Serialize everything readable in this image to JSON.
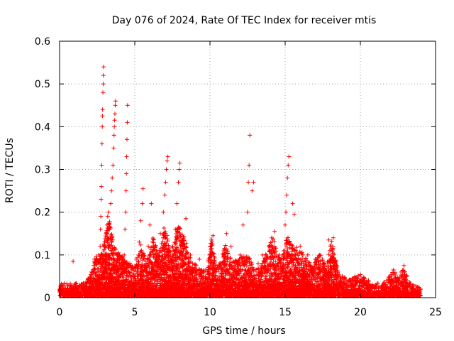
{
  "chart_data": {
    "type": "scatter",
    "title": "Day 076 of 2024, Rate Of TEC Index for receiver mtis",
    "xlabel": "GPS time / hours",
    "ylabel": "ROTI / TECUs",
    "xlim": [
      0,
      25
    ],
    "ylim": [
      0,
      0.6
    ],
    "x_ticks": [
      "0",
      "5",
      "10",
      "15",
      "20",
      "25"
    ],
    "y_ticks": [
      "0",
      "0.1",
      "0.2",
      "0.3",
      "0.4",
      "0.5",
      "0.6"
    ],
    "grid": true,
    "marker": "plus",
    "color": "#ff0000",
    "series": [
      {
        "name": "ROTI",
        "points": [
          [
            0.05,
            0.018
          ],
          [
            0.2,
            0.03
          ],
          [
            0.5,
            0.022
          ],
          [
            0.9,
            0.085
          ],
          [
            1.0,
            0.03
          ],
          [
            1.4,
            0.028
          ],
          [
            1.8,
            0.032
          ],
          [
            2.1,
            0.04
          ],
          [
            2.3,
            0.06
          ],
          [
            2.4,
            0.08
          ],
          [
            2.5,
            0.088
          ],
          [
            2.6,
            0.1
          ],
          [
            2.7,
            0.12
          ],
          [
            2.72,
            0.16
          ],
          [
            2.74,
            0.19
          ],
          [
            2.76,
            0.23
          ],
          [
            2.78,
            0.26
          ],
          [
            2.8,
            0.31
          ],
          [
            2.82,
            0.36
          ],
          [
            2.84,
            0.4
          ],
          [
            2.85,
            0.425
          ],
          [
            2.86,
            0.44
          ],
          [
            2.88,
            0.48
          ],
          [
            2.9,
            0.5
          ],
          [
            2.91,
            0.52
          ],
          [
            2.92,
            0.54
          ],
          [
            3.0,
            0.12
          ],
          [
            3.1,
            0.15
          ],
          [
            3.15,
            0.17
          ],
          [
            3.2,
            0.19
          ],
          [
            3.25,
            0.2
          ],
          [
            3.4,
            0.22
          ],
          [
            3.45,
            0.25
          ],
          [
            3.5,
            0.28
          ],
          [
            3.55,
            0.31
          ],
          [
            3.6,
            0.35
          ],
          [
            3.62,
            0.38
          ],
          [
            3.64,
            0.4
          ],
          [
            3.66,
            0.415
          ],
          [
            3.68,
            0.43
          ],
          [
            3.7,
            0.45
          ],
          [
            3.72,
            0.46
          ],
          [
            3.8,
            0.1
          ],
          [
            4.0,
            0.09
          ],
          [
            4.3,
            0.1
          ],
          [
            4.35,
            0.16
          ],
          [
            4.4,
            0.2
          ],
          [
            4.42,
            0.25
          ],
          [
            4.44,
            0.29
          ],
          [
            4.46,
            0.33
          ],
          [
            4.48,
            0.37
          ],
          [
            4.5,
            0.41
          ],
          [
            4.52,
            0.45
          ],
          [
            4.8,
            0.07
          ],
          [
            5.1,
            0.09
          ],
          [
            5.3,
            0.13
          ],
          [
            5.4,
            0.18
          ],
          [
            5.5,
            0.22
          ],
          [
            5.55,
            0.255
          ],
          [
            5.9,
            0.12
          ],
          [
            6.0,
            0.17
          ],
          [
            6.1,
            0.22
          ],
          [
            6.2,
            0.08
          ],
          [
            6.5,
            0.1
          ],
          [
            6.7,
            0.15
          ],
          [
            6.9,
            0.2
          ],
          [
            7.0,
            0.24
          ],
          [
            7.05,
            0.27
          ],
          [
            7.1,
            0.3
          ],
          [
            7.15,
            0.32
          ],
          [
            7.2,
            0.33
          ],
          [
            7.5,
            0.12
          ],
          [
            7.7,
            0.16
          ],
          [
            7.8,
            0.22
          ],
          [
            7.9,
            0.27
          ],
          [
            7.95,
            0.3
          ],
          [
            8.0,
            0.315
          ],
          [
            8.2,
            0.1
          ],
          [
            8.4,
            0.185
          ],
          [
            8.7,
            0.1
          ],
          [
            9.0,
            0.07
          ],
          [
            9.3,
            0.09
          ],
          [
            9.6,
            0.06
          ],
          [
            9.9,
            0.07
          ],
          [
            10.1,
            0.1
          ],
          [
            10.2,
            0.145
          ],
          [
            10.5,
            0.07
          ],
          [
            10.9,
            0.1
          ],
          [
            11.1,
            0.15
          ],
          [
            11.4,
            0.12
          ],
          [
            11.7,
            0.08
          ],
          [
            12.0,
            0.1
          ],
          [
            12.2,
            0.17
          ],
          [
            12.3,
            0.09
          ],
          [
            12.5,
            0.2
          ],
          [
            12.55,
            0.27
          ],
          [
            12.6,
            0.31
          ],
          [
            12.65,
            0.38
          ],
          [
            12.8,
            0.25
          ],
          [
            12.9,
            0.27
          ],
          [
            13.2,
            0.08
          ],
          [
            13.5,
            0.1
          ],
          [
            13.8,
            0.09
          ],
          [
            14.0,
            0.11
          ],
          [
            14.1,
            0.14
          ],
          [
            14.3,
            0.155
          ],
          [
            14.6,
            0.1
          ],
          [
            14.9,
            0.11
          ],
          [
            15.0,
            0.17
          ],
          [
            15.05,
            0.2
          ],
          [
            15.1,
            0.24
          ],
          [
            15.15,
            0.28
          ],
          [
            15.2,
            0.31
          ],
          [
            15.25,
            0.33
          ],
          [
            15.5,
            0.22
          ],
          [
            15.6,
            0.195
          ],
          [
            16.0,
            0.12
          ],
          [
            16.5,
            0.1
          ],
          [
            17.0,
            0.09
          ],
          [
            17.3,
            0.1
          ],
          [
            17.6,
            0.08
          ],
          [
            17.9,
            0.135
          ],
          [
            18.2,
            0.14
          ],
          [
            18.5,
            0.06
          ],
          [
            19.0,
            0.045
          ],
          [
            19.5,
            0.04
          ],
          [
            20.0,
            0.05
          ],
          [
            20.5,
            0.035
          ],
          [
            21.0,
            0.03
          ],
          [
            21.5,
            0.03
          ],
          [
            22.0,
            0.035
          ],
          [
            22.2,
            0.065
          ],
          [
            22.5,
            0.04
          ],
          [
            22.7,
            0.06
          ],
          [
            22.9,
            0.075
          ],
          [
            23.1,
            0.05
          ],
          [
            23.5,
            0.03
          ],
          [
            24.0,
            0.02
          ]
        ]
      }
    ],
    "dense_band": {
      "description_units": "envelope of dense noise floor (x in hours, y_max in TECUs)",
      "envelope": [
        [
          0.0,
          0.03
        ],
        [
          0.5,
          0.03
        ],
        [
          1.5,
          0.03
        ],
        [
          2.0,
          0.045
        ],
        [
          2.3,
          0.09
        ],
        [
          2.7,
          0.1
        ],
        [
          3.0,
          0.13
        ],
        [
          3.3,
          0.19
        ],
        [
          3.6,
          0.12
        ],
        [
          4.0,
          0.1
        ],
        [
          4.5,
          0.08
        ],
        [
          5.0,
          0.07
        ],
        [
          5.4,
          0.12
        ],
        [
          5.8,
          0.08
        ],
        [
          6.2,
          0.14
        ],
        [
          6.6,
          0.1
        ],
        [
          7.0,
          0.17
        ],
        [
          7.4,
          0.1
        ],
        [
          7.9,
          0.17
        ],
        [
          8.3,
          0.14
        ],
        [
          8.8,
          0.08
        ],
        [
          9.3,
          0.07
        ],
        [
          9.8,
          0.06
        ],
        [
          10.1,
          0.14
        ],
        [
          10.5,
          0.06
        ],
        [
          11.0,
          0.12
        ],
        [
          11.5,
          0.08
        ],
        [
          12.0,
          0.09
        ],
        [
          12.5,
          0.1
        ],
        [
          13.0,
          0.06
        ],
        [
          13.5,
          0.08
        ],
        [
          14.2,
          0.14
        ],
        [
          14.7,
          0.08
        ],
        [
          15.1,
          0.14
        ],
        [
          15.6,
          0.12
        ],
        [
          16.2,
          0.1
        ],
        [
          16.8,
          0.07
        ],
        [
          17.3,
          0.1
        ],
        [
          17.7,
          0.07
        ],
        [
          18.1,
          0.13
        ],
        [
          18.6,
          0.05
        ],
        [
          19.2,
          0.04
        ],
        [
          20.0,
          0.05
        ],
        [
          20.8,
          0.03
        ],
        [
          21.5,
          0.03
        ],
        [
          22.2,
          0.06
        ],
        [
          22.6,
          0.04
        ],
        [
          22.9,
          0.07
        ],
        [
          23.3,
          0.03
        ],
        [
          24.0,
          0.02
        ]
      ]
    }
  }
}
